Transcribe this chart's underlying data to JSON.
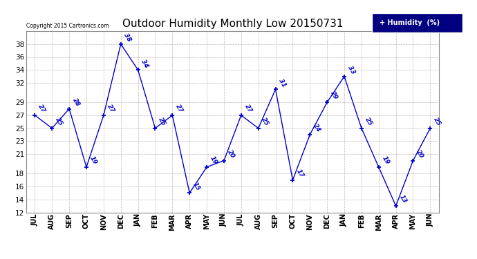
{
  "title": "Outdoor Humidity Monthly Low 20150731",
  "copyright_text": "Copyright 2015 Cartronics.com",
  "legend_label": "Humidity  (%)",
  "months": [
    "JUL",
    "AUG",
    "SEP",
    "OCT",
    "NOV",
    "DEC",
    "JAN",
    "FEB",
    "MAR",
    "APR",
    "MAY",
    "JUN",
    "JUL",
    "AUG",
    "SEP",
    "OCT",
    "NOV",
    "DEC",
    "JAN",
    "FEB",
    "MAR",
    "APR",
    "MAY",
    "JUN"
  ],
  "values": [
    27,
    25,
    28,
    19,
    27,
    38,
    34,
    25,
    27,
    15,
    19,
    20,
    27,
    25,
    31,
    17,
    24,
    29,
    33,
    25,
    19,
    13,
    20,
    25
  ],
  "line_color": "#0000cc",
  "marker": "+",
  "ylim": [
    12,
    40
  ],
  "yticks": [
    12,
    14,
    16,
    18,
    21,
    23,
    25,
    27,
    29,
    32,
    34,
    36,
    38
  ],
  "title_fontsize": 11,
  "background_color": "#ffffff",
  "grid_color": "#aaaaaa",
  "legend_bg": "#000080",
  "legend_fg": "#ffffff"
}
